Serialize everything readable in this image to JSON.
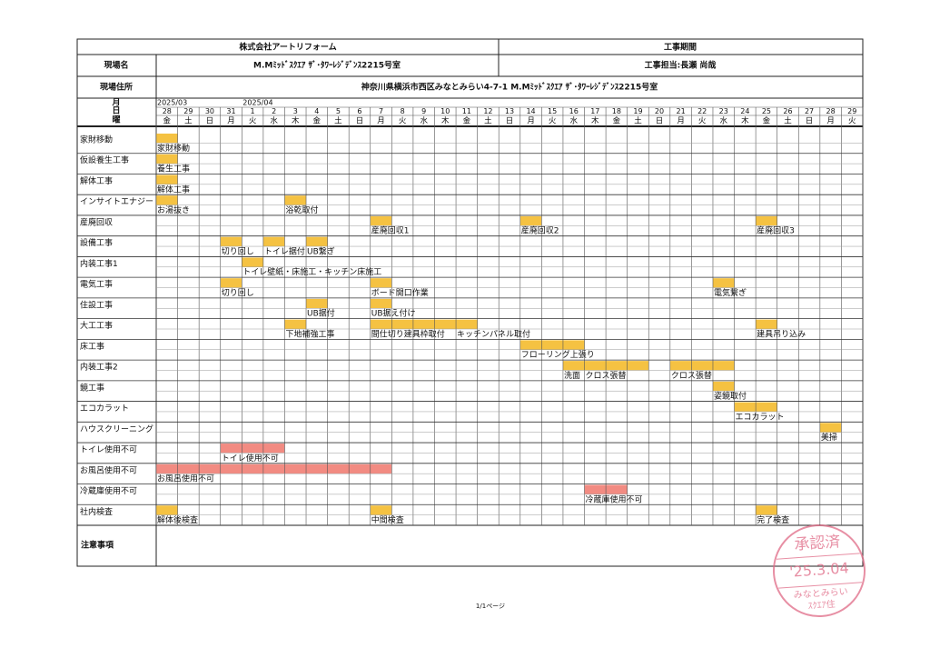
{
  "header": {
    "company": "株式会社アートリフォーム",
    "period_label": "工事期間",
    "site_name_label": "現場名",
    "site_name": "M.Mﾐｯﾄﾞｽｸｴｱ ｻﾞ･ﾀﾜｰﾚｼﾞﾃﾞﾝｽ2215号室",
    "manager": "工事担当:長瀬 尚哉",
    "address_label": "現場住所",
    "address": "神奈川県横浜市西区みなとみらい4-7-1 M.Mﾐｯﾄﾞｽｸｴｱ ｻﾞ･ﾀﾜｰﾚｼﾞﾃﾞﾝｽ2215号室"
  },
  "calendar": {
    "month_label": "月",
    "day_label": "日",
    "weekday_label": "曜",
    "days": [
      {
        "day": 28,
        "weekday": "金",
        "month": "2025/03"
      },
      {
        "day": 29,
        "weekday": "土"
      },
      {
        "day": 30,
        "weekday": "日"
      },
      {
        "day": 31,
        "weekday": "月"
      },
      {
        "day": 1,
        "weekday": "火",
        "month": "2025/04"
      },
      {
        "day": 2,
        "weekday": "水"
      },
      {
        "day": 3,
        "weekday": "木"
      },
      {
        "day": 4,
        "weekday": "金"
      },
      {
        "day": 5,
        "weekday": "土"
      },
      {
        "day": 6,
        "weekday": "日"
      },
      {
        "day": 7,
        "weekday": "月"
      },
      {
        "day": 8,
        "weekday": "火"
      },
      {
        "day": 9,
        "weekday": "水"
      },
      {
        "day": 10,
        "weekday": "木"
      },
      {
        "day": 11,
        "weekday": "金"
      },
      {
        "day": 12,
        "weekday": "土"
      },
      {
        "day": 13,
        "weekday": "日"
      },
      {
        "day": 14,
        "weekday": "月"
      },
      {
        "day": 15,
        "weekday": "火"
      },
      {
        "day": 16,
        "weekday": "水"
      },
      {
        "day": 17,
        "weekday": "木"
      },
      {
        "day": 18,
        "weekday": "金"
      },
      {
        "day": 19,
        "weekday": "土"
      },
      {
        "day": 20,
        "weekday": "日"
      },
      {
        "day": 21,
        "weekday": "月"
      },
      {
        "day": 22,
        "weekday": "火"
      },
      {
        "day": 23,
        "weekday": "水"
      },
      {
        "day": 24,
        "weekday": "木"
      },
      {
        "day": 25,
        "weekday": "金"
      },
      {
        "day": 26,
        "weekday": "土"
      },
      {
        "day": 27,
        "weekday": "日"
      },
      {
        "day": 28,
        "weekday": "月"
      },
      {
        "day": 29,
        "weekday": "火"
      }
    ]
  },
  "tasks": [
    {
      "name": "家財移動",
      "bars": [
        {
          "start": 0,
          "end": 0,
          "label": "家財移動",
          "color": "#f5c242"
        }
      ]
    },
    {
      "name": "仮設養生工事",
      "bars": [
        {
          "start": 0,
          "end": 0,
          "label": "養生工事",
          "color": "#f5c242"
        }
      ]
    },
    {
      "name": "解体工事",
      "bars": [
        {
          "start": 0,
          "end": 0,
          "label": "解体工事",
          "color": "#f5c242"
        }
      ]
    },
    {
      "name": "インサイトエナジー",
      "bars": [
        {
          "start": 0,
          "end": 0,
          "label": "お湯抜き",
          "color": "#f5c242"
        },
        {
          "start": 6,
          "end": 6,
          "label": "浴乾取付",
          "color": "#f5c242"
        }
      ]
    },
    {
      "name": "産廃回収",
      "bars": [
        {
          "start": 10,
          "end": 10,
          "label": "産廃回収1",
          "color": "#f5c242"
        },
        {
          "start": 17,
          "end": 17,
          "label": "産廃回収2",
          "color": "#f5c242"
        },
        {
          "start": 28,
          "end": 28,
          "label": "産廃回収3",
          "color": "#f5c242"
        }
      ]
    },
    {
      "name": "設備工事",
      "bars": [
        {
          "start": 3,
          "end": 3,
          "label": "切り回し",
          "color": "#f5c242"
        },
        {
          "start": 5,
          "end": 5,
          "label": "トイレ据付",
          "color": "#f5c242"
        },
        {
          "start": 7,
          "end": 7,
          "label": "UB繋ぎ",
          "color": "#f5c242"
        }
      ]
    },
    {
      "name": "内装工事1",
      "bars": [
        {
          "start": 4,
          "end": 4,
          "label": "トイレ壁紙・床施工・キッチン床施工",
          "color": "#f5c242"
        }
      ]
    },
    {
      "name": "電気工事",
      "bars": [
        {
          "start": 3,
          "end": 3,
          "label": "切り回し",
          "color": "#f5c242"
        },
        {
          "start": 10,
          "end": 10,
          "label": "ボード開口作業",
          "color": "#f5c242"
        },
        {
          "start": 26,
          "end": 26,
          "label": "電気繋ぎ",
          "color": "#f5c242"
        }
      ]
    },
    {
      "name": "住設工事",
      "bars": [
        {
          "start": 7,
          "end": 7,
          "label": "UB据付",
          "color": "#f5c242"
        },
        {
          "start": 10,
          "end": 10,
          "label": "UB据え付け",
          "color": "#f5c242"
        }
      ]
    },
    {
      "name": "大工工事",
      "bars": [
        {
          "start": 6,
          "end": 6,
          "label": "下地補強工事",
          "color": "#f5c242"
        },
        {
          "start": 10,
          "end": 13,
          "label": "間仕切り建具枠取付",
          "color": "#f5c242"
        },
        {
          "start": 14,
          "end": 14,
          "label": "キッチンパネル取付",
          "color": "#f5c242"
        },
        {
          "start": 28,
          "end": 28,
          "label": "建具吊り込み",
          "color": "#f5c242"
        }
      ]
    },
    {
      "name": "床工事",
      "bars": [
        {
          "start": 17,
          "end": 19,
          "label": "フローリング上張り",
          "color": "#f5c242"
        }
      ]
    },
    {
      "name": "内装工事2",
      "bars": [
        {
          "start": 19,
          "end": 19,
          "label": "洗面",
          "color": "#f5c242"
        },
        {
          "start": 20,
          "end": 22,
          "label": "クロス張替",
          "color": "#f5c242"
        },
        {
          "start": 24,
          "end": 26,
          "label": "クロス張替",
          "color": "#f5c242"
        }
      ]
    },
    {
      "name": "鏡工事",
      "bars": [
        {
          "start": 26,
          "end": 26,
          "label": "姿鏡取付",
          "color": "#f5c242"
        }
      ]
    },
    {
      "name": "エコカラット",
      "bars": [
        {
          "start": 27,
          "end": 28,
          "label": "エコカラット",
          "color": "#f5c242"
        }
      ]
    },
    {
      "name": "ハウスクリーニング",
      "bars": [
        {
          "start": 31,
          "end": 31,
          "label": "美掃",
          "color": "#f5c242"
        }
      ]
    },
    {
      "name": "トイレ使用不可",
      "bars": [
        {
          "start": 3,
          "end": 5,
          "label": "トイレ使用不可",
          "color": "#f28b82"
        }
      ]
    },
    {
      "name": "お風呂使用不可",
      "bars": [
        {
          "start": 0,
          "end": 10,
          "label": "お風呂使用不可",
          "color": "#f28b82"
        }
      ]
    },
    {
      "name": "冷蔵庫使用不可",
      "bars": [
        {
          "start": 20,
          "end": 21,
          "label": "冷蔵庫使用不可",
          "color": "#f28b82"
        }
      ]
    },
    {
      "name": "社内検査",
      "bars": [
        {
          "start": 0,
          "end": 0,
          "label": "解体後検査",
          "color": "#f5c242"
        },
        {
          "start": 10,
          "end": 10,
          "label": "中間検査",
          "color": "#f5c242"
        },
        {
          "start": 28,
          "end": 28,
          "label": "完了検査",
          "color": "#f5c242"
        }
      ]
    }
  ],
  "notes_label": "注意事項",
  "footer": {
    "page": "1/1ページ"
  },
  "stamp": {
    "title": "承認済",
    "date": "'25.3.04",
    "line1": "みなとみらい",
    "line2": "ｽｸｴｱ住"
  }
}
